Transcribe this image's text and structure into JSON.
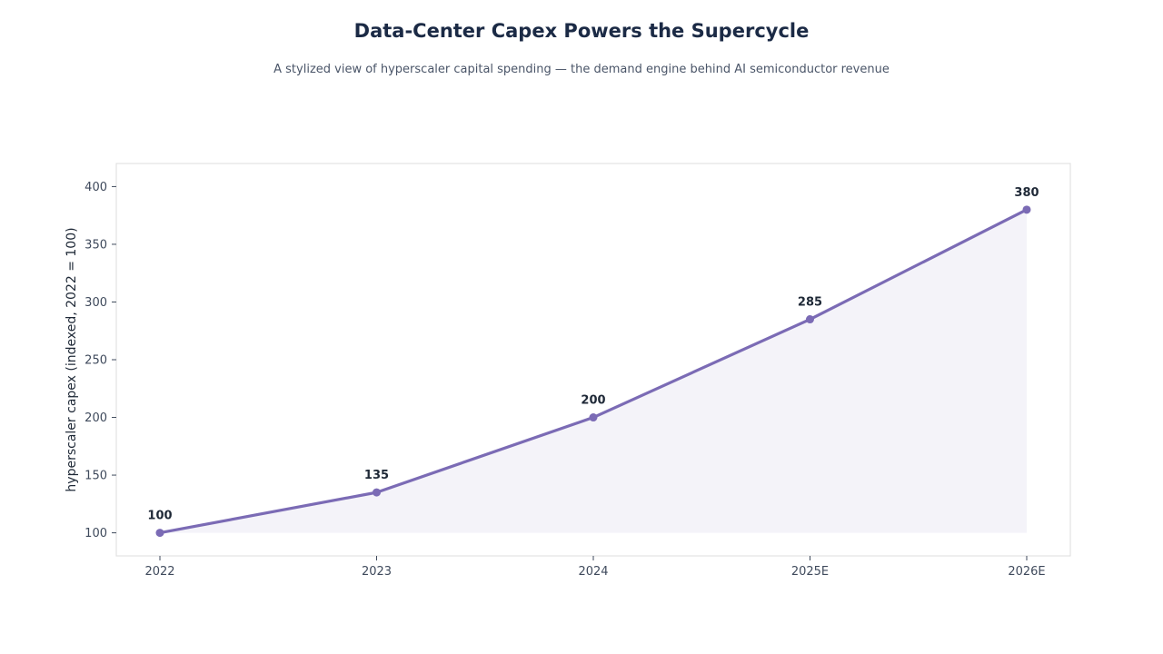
{
  "chart_data": {
    "type": "line",
    "title": "Data-Center Capex Powers the Supercycle",
    "subtitle": "A stylized view of hyperscaler capital spending — the demand engine behind AI semiconductor revenue",
    "xlabel": "",
    "ylabel": "hyperscaler capex (indexed, 2022 = 100)",
    "categories": [
      "2022",
      "2023",
      "2024",
      "2025E",
      "2026E"
    ],
    "series": [
      {
        "values": [
          100,
          135,
          200,
          285,
          380
        ],
        "data_labels": [
          "100",
          "135",
          "200",
          "285",
          "380"
        ]
      }
    ],
    "ylim": [
      80,
      420
    ],
    "yticks": [
      100,
      150,
      200,
      250,
      300,
      350,
      400
    ],
    "grid": false,
    "legend": "none",
    "area_fill": true,
    "colors": {
      "line": "#7b6bb5",
      "fill": "#f4f3f9",
      "frame": "#dddddd"
    }
  }
}
